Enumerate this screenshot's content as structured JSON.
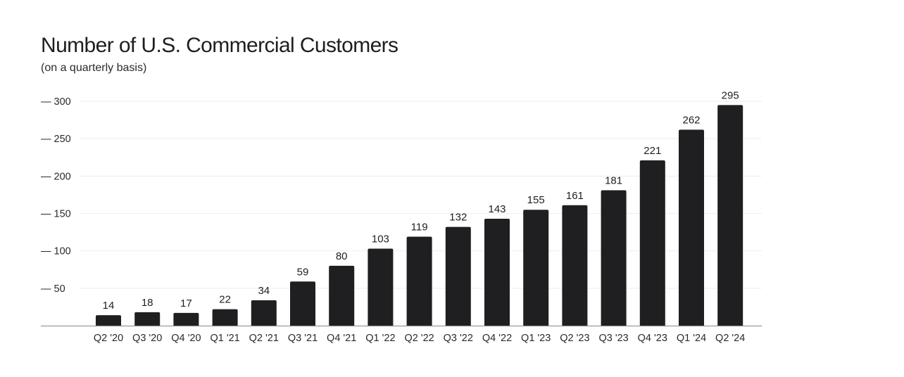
{
  "chart_data": {
    "type": "bar",
    "title": "Number of U.S. Commercial Customers",
    "subtitle": "(on a quarterly basis)",
    "xlabel": "",
    "ylabel": "",
    "categories": [
      "Q2 '20",
      "Q3 '20",
      "Q4 '20",
      "Q1 '21",
      "Q2 '21",
      "Q3 '21",
      "Q4 '21",
      "Q1 '22",
      "Q2 '22",
      "Q3 '22",
      "Q4 '22",
      "Q1 '23",
      "Q2 '23",
      "Q3 '23",
      "Q4 '23",
      "Q1 '24",
      "Q2 '24"
    ],
    "values": [
      14,
      18,
      17,
      22,
      34,
      59,
      80,
      103,
      119,
      132,
      143,
      155,
      161,
      181,
      221,
      262,
      295
    ],
    "ylim": [
      0,
      300
    ],
    "yticks": [
      50,
      100,
      150,
      200,
      250,
      300
    ],
    "ytick_prefix": "— ",
    "grid": true,
    "bar_color": "#1f1f22",
    "grid_color": "#eeeeee",
    "axis_color": "#9a9a9a"
  }
}
